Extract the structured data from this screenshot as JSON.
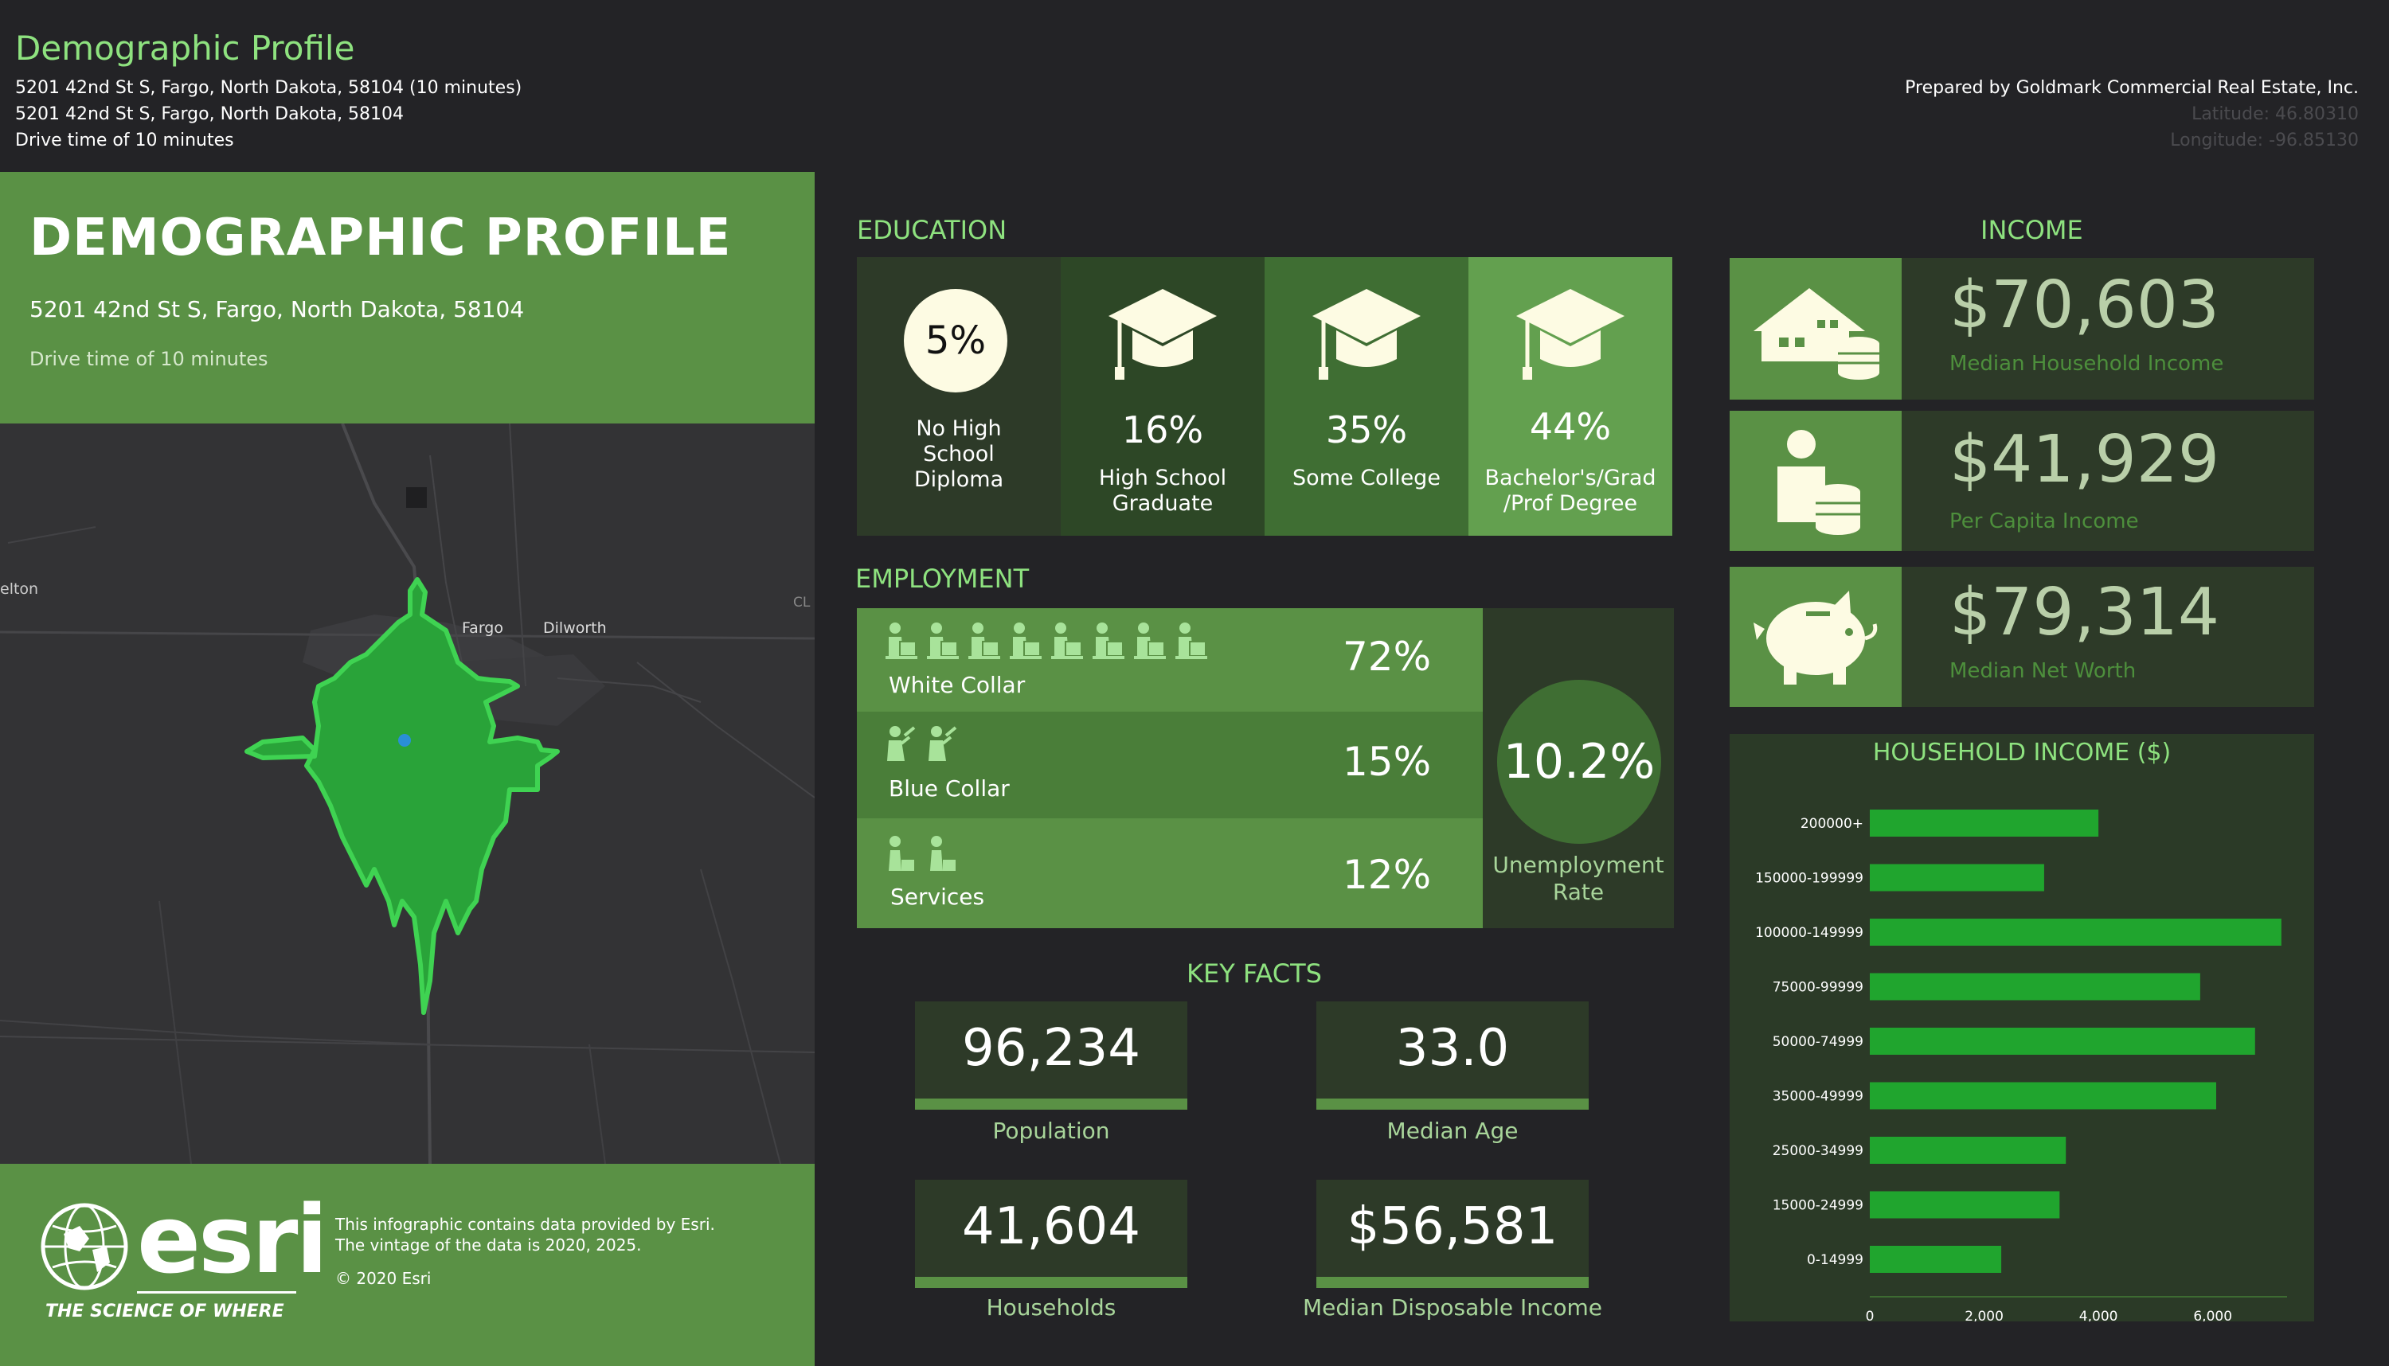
{
  "header": {
    "title": "Demographic Profile",
    "line1": "5201 42nd St S, Fargo, North Dakota, 58104 (10 minutes)",
    "line2": "5201 42nd St S, Fargo, North Dakota, 58104",
    "line3": "Drive time of 10 minutes",
    "prepared_by": "Prepared by Goldmark Commercial Real Estate, Inc.",
    "latitude": "Latitude: 46.80310",
    "longitude": "Longitude: -96.85130"
  },
  "left_panel": {
    "title": "DEMOGRAPHIC PROFILE",
    "address": "5201 42nd St S, Fargo, North Dakota, 58104",
    "drive_time": "Drive time of 10 minutes"
  },
  "map": {
    "labels": {
      "fargo": "Fargo",
      "dilworth": "Dilworth",
      "elton": "elton",
      "cl": "CL"
    }
  },
  "footer": {
    "logo_text": "esri",
    "tagline": "THE SCIENCE OF WHERE",
    "note1": "This infographic contains data provided by Esri.",
    "note2": "The vintage of the data is 2020, 2025.",
    "copyright": "© 2020 Esri"
  },
  "education": {
    "title": "EDUCATION",
    "items": [
      {
        "pct": "5%",
        "label": [
          "No High",
          "School",
          "Diploma"
        ]
      },
      {
        "pct": "16%",
        "label": [
          "High School",
          "Graduate"
        ],
        "icon": "graduation-cap-icon"
      },
      {
        "pct": "35%",
        "label": [
          "Some College"
        ],
        "icon": "graduation-cap-icon"
      },
      {
        "pct": "44%",
        "label": [
          "Bachelor's/Grad",
          "/Prof Degree"
        ],
        "icon": "graduation-cap-icon"
      }
    ]
  },
  "employment": {
    "title": "EMPLOYMENT",
    "rows": [
      {
        "label": "White Collar",
        "pct": "72%",
        "icon_count": 8,
        "icon": "office-worker-icon"
      },
      {
        "label": "Blue Collar",
        "pct": "15%",
        "icon_count": 2,
        "icon": "laborer-icon"
      },
      {
        "label": "Services",
        "pct": "12%",
        "icon_count": 2,
        "icon": "service-worker-icon"
      }
    ],
    "unemployment_value": "10.2%",
    "unemployment_label": [
      "Unemployment",
      "Rate"
    ]
  },
  "key_facts": {
    "title": "KEY FACTS",
    "items": [
      {
        "value": "96,234",
        "label": "Population"
      },
      {
        "value": "33.0",
        "label": "Median Age"
      },
      {
        "value": "41,604",
        "label": "Households"
      },
      {
        "value": "$56,581",
        "label": "Median Disposable Income"
      }
    ]
  },
  "income": {
    "title": "INCOME",
    "items": [
      {
        "value": "$70,603",
        "label": "Median Household Income",
        "icon": "house-coins-icon"
      },
      {
        "value": "$41,929",
        "label": "Per Capita Income",
        "icon": "person-coins-icon"
      },
      {
        "value": "$79,314",
        "label": "Median Net Worth",
        "icon": "piggy-bank-icon"
      }
    ]
  },
  "colors": {
    "accent": "#8ee27f",
    "panel_green": "#5a9145",
    "dark_green": "#2d3a28",
    "bar_green": "#20a52e",
    "background": "#232326"
  },
  "chart_data": {
    "type": "bar",
    "orientation": "horizontal",
    "title": "HOUSEHOLD INCOME ($)",
    "categories": [
      "200000+",
      "150000-199999",
      "100000-149999",
      "75000-99999",
      "50000-74999",
      "35000-49999",
      "25000-34999",
      "15000-24999",
      "0-14999"
    ],
    "values": [
      4000,
      3050,
      7200,
      5780,
      6740,
      6060,
      3430,
      3320,
      2300
    ],
    "xticks": [
      "0",
      "2,000",
      "4,000",
      "6,000"
    ],
    "xlim": [
      0,
      7300
    ],
    "grid": false,
    "legend": "none"
  }
}
